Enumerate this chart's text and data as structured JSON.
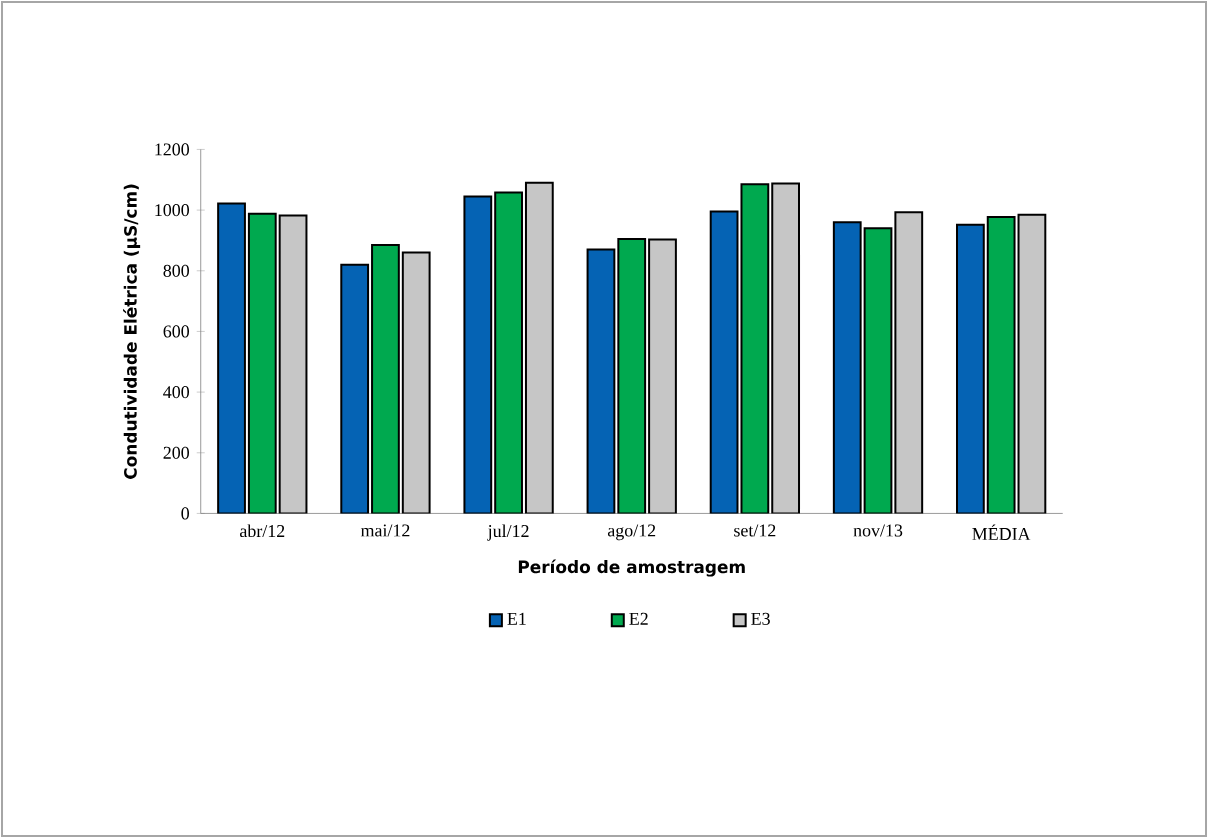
{
  "chart_data": {
    "type": "bar",
    "xlabel": "Período de amostragem",
    "ylabel": "Condutividade Elétrica (µS/cm)",
    "categories": [
      "abr/12",
      "mai/12",
      "jul/12",
      "ago/12",
      "set/12",
      "nov/13",
      "MÉDIA"
    ],
    "series": [
      {
        "name": "E1",
        "color": "#0563b4",
        "values": [
          1022,
          820,
          1045,
          870,
          995,
          960,
          952
        ]
      },
      {
        "name": "E2",
        "color": "#00a94f",
        "values": [
          988,
          885,
          1058,
          905,
          1085,
          940,
          977
        ]
      },
      {
        "name": "E3",
        "color": "#c6c6c6",
        "values": [
          982,
          860,
          1090,
          903,
          1088,
          993,
          985
        ]
      }
    ],
    "ylim": [
      0,
      1200
    ],
    "yticks": [
      0,
      200,
      400,
      600,
      800,
      1000,
      1200
    ],
    "grid": false,
    "legend": "bottom"
  }
}
